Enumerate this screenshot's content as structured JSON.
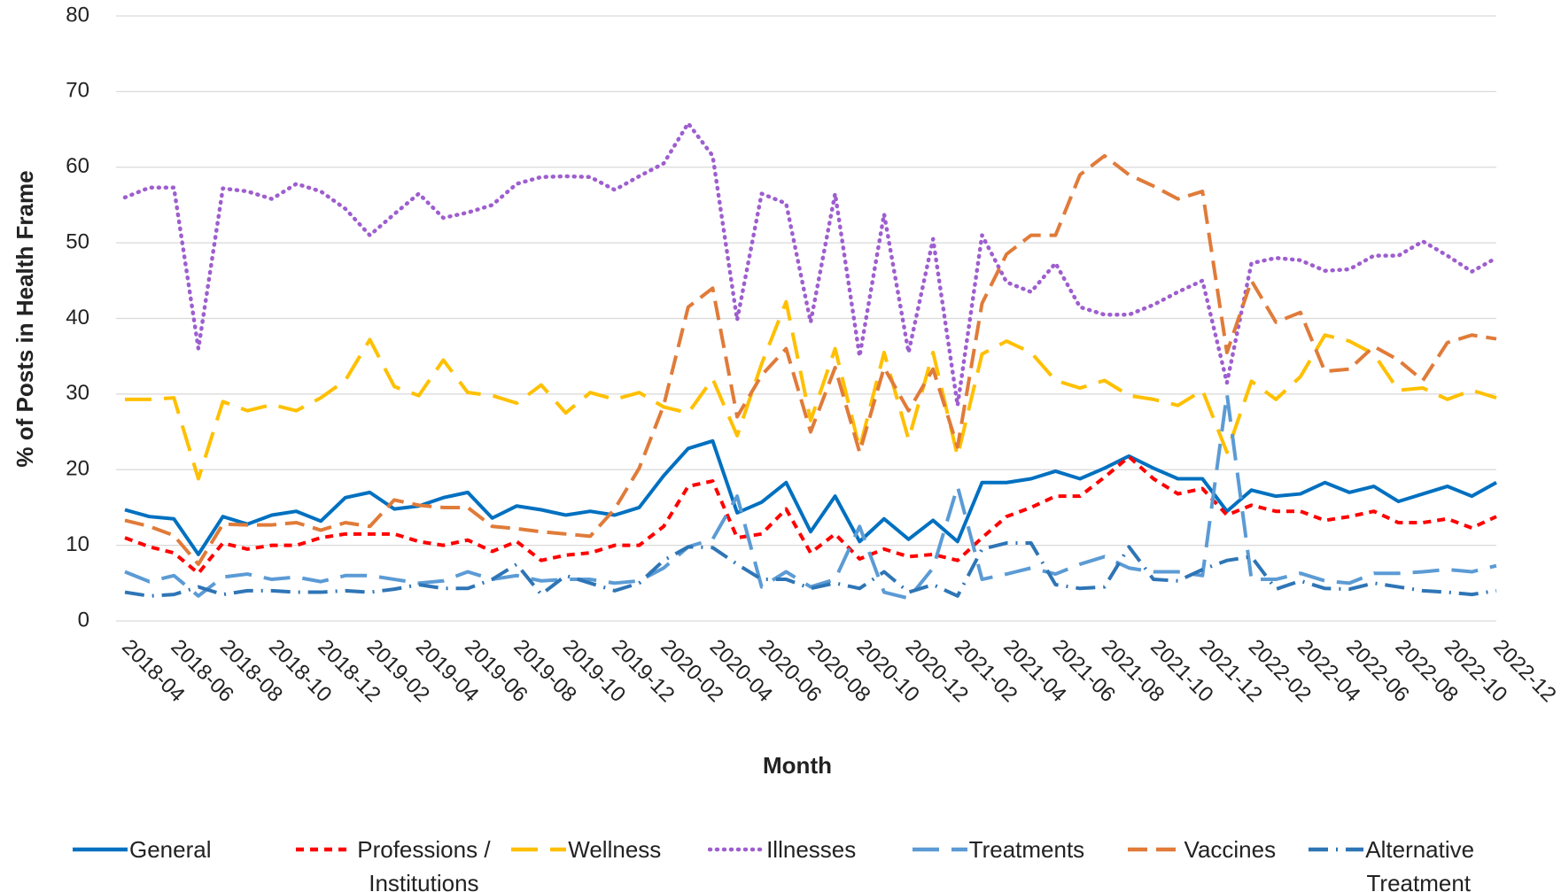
{
  "chart_data": {
    "type": "line",
    "x_label": "Month",
    "y_label": "% of Posts in Health Frame",
    "categories": [
      "2018-04",
      null,
      "2018-06",
      null,
      "2018-08",
      null,
      "2018-10",
      null,
      "2018-12",
      null,
      "2019-02",
      null,
      "2019-04",
      null,
      "2019-06",
      null,
      "2019-08",
      null,
      "2019-10",
      null,
      "2019-12",
      null,
      "2020-02",
      null,
      "2020-04",
      null,
      "2020-06",
      null,
      "2020-08",
      null,
      "2020-10",
      null,
      "2020-12",
      null,
      "2021-02",
      null,
      "2021-04",
      null,
      "2021-06",
      null,
      "2021-08",
      null,
      "2021-10",
      null,
      "2021-12",
      null,
      "2022-02",
      null,
      "2022-04",
      null,
      "2022-06",
      null,
      "2022-08",
      null,
      "2022-10",
      null,
      "2022-12"
    ],
    "ylim": [
      0,
      80
    ],
    "yticks": [
      0,
      10,
      20,
      30,
      40,
      50,
      60,
      70,
      80
    ],
    "grid": true,
    "legend": "bottom",
    "series": [
      {
        "name": "General",
        "color": "#0070c0",
        "linestyle": "solid",
        "values": [
          14.7,
          13.8,
          13.5,
          8.8,
          13.8,
          12.8,
          14,
          14.5,
          13.2,
          16.3,
          17,
          14.8,
          15.2,
          16.3,
          17,
          13.6,
          15.2,
          14.7,
          14,
          14.5,
          14,
          15,
          19.2,
          22.8,
          23.8,
          14.3,
          15.7,
          18.3,
          11.8,
          16.5,
          10.5,
          13.5,
          10.8,
          13.3,
          10.5,
          18.3,
          18.3,
          18.8,
          19.8,
          18.8,
          20.2,
          21.8,
          20.2,
          18.8,
          18.8,
          14.5,
          17.3,
          16.5,
          16.8,
          18.3,
          17,
          17.8,
          15.8,
          16.8,
          17.8,
          16.5,
          18.3
        ]
      },
      {
        "name": "Professions / Institutions",
        "color": "#ff0000",
        "linestyle": "dashed",
        "values": [
          11,
          9.8,
          9,
          6.3,
          10.3,
          9.5,
          10,
          10,
          11,
          11.5,
          11.5,
          11.5,
          10.5,
          10,
          10.7,
          9.2,
          10.5,
          8,
          8.7,
          9,
          10,
          10,
          12.5,
          17.8,
          18.5,
          11,
          11.5,
          14.8,
          9,
          11.5,
          8.2,
          9.5,
          8.5,
          8.8,
          8,
          11,
          13.8,
          15,
          16.5,
          16.5,
          19,
          21.7,
          18.8,
          16.8,
          17.5,
          14,
          15.3,
          14.5,
          14.5,
          13.3,
          13.8,
          14.5,
          13,
          13,
          13.5,
          12.3,
          13.8
        ]
      },
      {
        "name": "Wellness",
        "color": "#ffc000",
        "linestyle": "longdash",
        "values": [
          29.3,
          29.3,
          29.5,
          18.8,
          29,
          27.8,
          28.6,
          27.8,
          29.5,
          31.8,
          37.2,
          31,
          29.8,
          34.5,
          30.2,
          29.8,
          28.8,
          31.2,
          27.5,
          30.2,
          29.3,
          30.2,
          28.3,
          27.5,
          32,
          24.5,
          34,
          42.2,
          26.5,
          36,
          22.8,
          35.5,
          24,
          35.5,
          21.8,
          35.3,
          37,
          35.5,
          31.8,
          30.8,
          31.8,
          29.8,
          29.3,
          28.5,
          30.5,
          22.3,
          31.7,
          29.3,
          32.3,
          37.8,
          37,
          35.3,
          30.5,
          30.8,
          29.3,
          30.5,
          29.5
        ]
      },
      {
        "name": "Illnesses",
        "color": "#9e5ecf",
        "linestyle": "dotted",
        "values": [
          56,
          57.3,
          57.3,
          36,
          57.2,
          56.8,
          55.8,
          57.8,
          56.8,
          54.5,
          51,
          53.8,
          56.5,
          53.3,
          54,
          55,
          57.8,
          58.7,
          58.8,
          58.7,
          57,
          58.8,
          60.5,
          65.8,
          61.5,
          39.8,
          56.5,
          55.2,
          39.5,
          56.5,
          35,
          53.8,
          35.5,
          50.5,
          28.5,
          51,
          44.8,
          43.5,
          47.3,
          41.5,
          40.5,
          40.5,
          41.8,
          43.5,
          45,
          31.5,
          47.3,
          48,
          47.7,
          46.3,
          46.5,
          48.3,
          48.3,
          50.2,
          48.3,
          46.2,
          48
        ]
      },
      {
        "name": "Treatments",
        "color": "#5b9bd5",
        "linestyle": "longdash",
        "values": [
          6.5,
          5.2,
          6,
          3.3,
          5.8,
          6.2,
          5.5,
          5.8,
          5.2,
          6,
          6,
          5.5,
          5,
          5.3,
          6.5,
          5.5,
          6,
          5.3,
          5.5,
          5.5,
          5,
          5.3,
          7,
          9.8,
          10.8,
          16.5,
          4.5,
          6.5,
          4.5,
          5.5,
          12.5,
          3.8,
          3,
          7,
          17.8,
          5.5,
          6.2,
          7,
          6.2,
          7.5,
          8.5,
          7,
          6.5,
          6.5,
          6,
          30,
          5.5,
          5.5,
          6.3,
          5.3,
          5,
          6.3,
          6.3,
          6.5,
          6.8,
          6.5,
          7.3
        ]
      },
      {
        "name": "Vaccines",
        "color": "#e07b39",
        "linestyle": "dash",
        "values": [
          13.3,
          12.5,
          11.3,
          7.5,
          12.8,
          12.7,
          12.7,
          13,
          12,
          13,
          12.5,
          16,
          15.3,
          15,
          15,
          12.5,
          12.2,
          11.8,
          11.5,
          11.2,
          14.8,
          20.2,
          28.5,
          41.5,
          44,
          27,
          32.5,
          36,
          25,
          33.5,
          22.3,
          33.5,
          27.8,
          33.3,
          23,
          42,
          48.5,
          51,
          51,
          59,
          61.5,
          59,
          57.5,
          55.8,
          56.8,
          35.5,
          45,
          39.5,
          40.8,
          33,
          33.3,
          36.3,
          34.5,
          31.8,
          36.8,
          37.8,
          37.3
        ]
      },
      {
        "name": "Alternative Treatment",
        "color": "#2e75b6",
        "linestyle": "dashdot",
        "values": [
          3.8,
          3.3,
          3.5,
          4.5,
          3.5,
          4,
          4,
          3.8,
          3.8,
          4,
          3.8,
          4.2,
          4.8,
          4.3,
          4.3,
          5.5,
          7.5,
          3.5,
          6,
          5,
          4,
          5,
          8,
          9.8,
          9.7,
          7.5,
          5.5,
          5.5,
          4.3,
          5,
          4.3,
          6.5,
          3.8,
          4.8,
          3.3,
          9.5,
          10.3,
          10.3,
          4.8,
          4.3,
          4.5,
          9.8,
          5.5,
          5.3,
          6.8,
          8,
          8.5,
          4.2,
          5.3,
          4.3,
          4.2,
          5,
          4.5,
          4,
          3.8,
          3.5,
          4
        ]
      }
    ]
  }
}
